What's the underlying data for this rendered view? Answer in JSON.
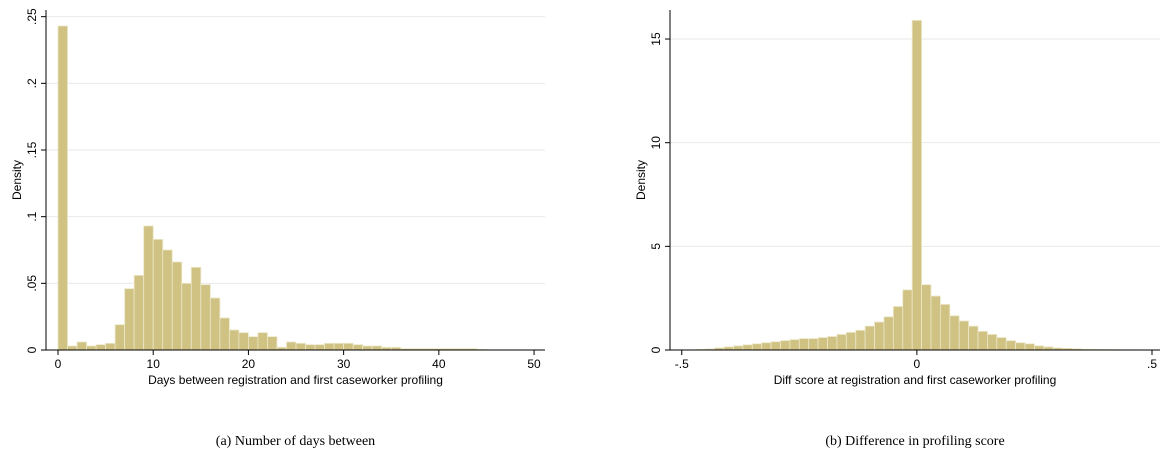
{
  "chart_data": [
    {
      "type": "histogram",
      "color": "#cfc283",
      "grid": true,
      "xlabel": "Days between registration and first caseworker profiling",
      "ylabel": "Density",
      "caption": "(a) Number of days between",
      "bins": [
        0,
        1,
        2,
        3,
        4,
        5,
        6,
        7,
        8,
        9,
        10,
        11,
        12,
        13,
        14,
        15,
        16,
        17,
        18,
        19,
        20,
        21,
        22,
        23,
        24,
        25,
        26,
        27,
        28,
        29,
        30,
        31,
        32,
        33,
        34,
        35,
        36,
        37,
        38,
        39,
        40,
        41,
        42,
        43,
        44,
        45
      ],
      "values": [
        0.243,
        0.003,
        0.006,
        0.003,
        0.004,
        0.005,
        0.019,
        0.046,
        0.056,
        0.093,
        0.083,
        0.075,
        0.066,
        0.05,
        0.062,
        0.049,
        0.039,
        0.024,
        0.015,
        0.013,
        0.01,
        0.013,
        0.01,
        0.002,
        0.006,
        0.005,
        0.004,
        0.004,
        0.005,
        0.005,
        0.005,
        0.004,
        0.003,
        0.003,
        0.002,
        0.002,
        0.001,
        0.001,
        0.001,
        0.001,
        0.001,
        0.001,
        0.001,
        0.001,
        0.0005
      ],
      "xlim": [
        -1.26,
        51.15
      ],
      "ylim": [
        0,
        0.255
      ],
      "xticks": [
        0,
        10,
        20,
        30,
        40,
        50
      ],
      "yticks": [
        0,
        {
          "value": 0.05,
          "label": ".05"
        },
        {
          "value": 0.1,
          "label": ".1"
        },
        {
          "value": 0.15,
          "label": ".15"
        },
        {
          "value": 0.2,
          "label": ".2"
        },
        {
          "value": 0.25,
          "label": ".25"
        }
      ]
    },
    {
      "type": "histogram",
      "color": "#cfc283",
      "grid": true,
      "xlabel": "Diff score at registration and first caseworker profiling",
      "ylabel": "Density",
      "caption": "(b) Difference in profiling score",
      "bins": [
        -0.47,
        -0.45,
        -0.43,
        -0.41,
        -0.39,
        -0.37,
        -0.35,
        -0.33,
        -0.31,
        -0.29,
        -0.27,
        -0.25,
        -0.23,
        -0.21,
        -0.19,
        -0.17,
        -0.15,
        -0.13,
        -0.11,
        -0.09,
        -0.07,
        -0.05,
        -0.03,
        -0.01,
        0.01,
        0.03,
        0.05,
        0.07,
        0.09,
        0.11,
        0.13,
        0.15,
        0.17,
        0.19,
        0.21,
        0.23,
        0.25,
        0.27,
        0.29,
        0.31,
        0.33,
        0.35,
        0.37,
        0.39,
        0.41,
        0.43,
        0.45,
        0.47
      ],
      "values": [
        0.03,
        0.05,
        0.1,
        0.15,
        0.2,
        0.25,
        0.3,
        0.35,
        0.4,
        0.45,
        0.5,
        0.55,
        0.55,
        0.6,
        0.65,
        0.75,
        0.85,
        0.95,
        1.15,
        1.35,
        1.6,
        2.1,
        2.9,
        15.9,
        3.15,
        2.6,
        2.2,
        1.65,
        1.4,
        1.15,
        0.9,
        0.75,
        0.6,
        0.45,
        0.35,
        0.3,
        0.2,
        0.15,
        0.1,
        0.08,
        0.06,
        0.04,
        0.03,
        0.02,
        0.02,
        0.01,
        0.01
      ],
      "xlim": [
        -0.525,
        0.517
      ],
      "ylim": [
        0,
        16.4
      ],
      "xticks": [
        {
          "value": -0.5,
          "label": "-.5"
        },
        0,
        {
          "value": 0.5,
          "label": ".5"
        }
      ],
      "yticks": [
        0,
        5,
        10,
        15
      ]
    }
  ]
}
